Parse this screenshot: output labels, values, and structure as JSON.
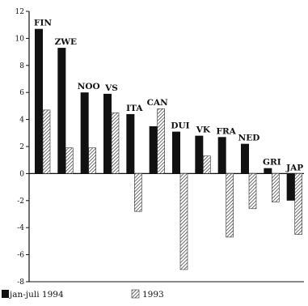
{
  "chart_data": {
    "type": "bar",
    "title": "",
    "xlabel": "",
    "ylabel": "",
    "ylim": [
      -8,
      12
    ],
    "yticks": [
      -8,
      -6,
      -4,
      -2,
      0,
      2,
      4,
      6,
      8,
      10,
      12
    ],
    "grid": false,
    "legend_position": "bottom-left",
    "categories": [
      "FIN",
      "ZWE",
      "NOO",
      "VS",
      "ITA",
      "CAN",
      "DUI",
      "VK",
      "FRA",
      "NED",
      "GRI",
      "JAP"
    ],
    "series": [
      {
        "name": "jan-juli 1994",
        "fill": "solid",
        "color": "#111111",
        "values": [
          10.7,
          9.3,
          6.0,
          5.9,
          4.4,
          3.5,
          3.1,
          2.8,
          2.7,
          2.2,
          0.4,
          -2.0
        ]
      },
      {
        "name": "1993",
        "fill": "hatched",
        "color": "#777777",
        "values": [
          4.7,
          1.9,
          1.9,
          4.5,
          -2.8,
          4.8,
          -7.1,
          1.3,
          -4.7,
          -2.6,
          -2.1,
          -4.5
        ]
      }
    ]
  }
}
